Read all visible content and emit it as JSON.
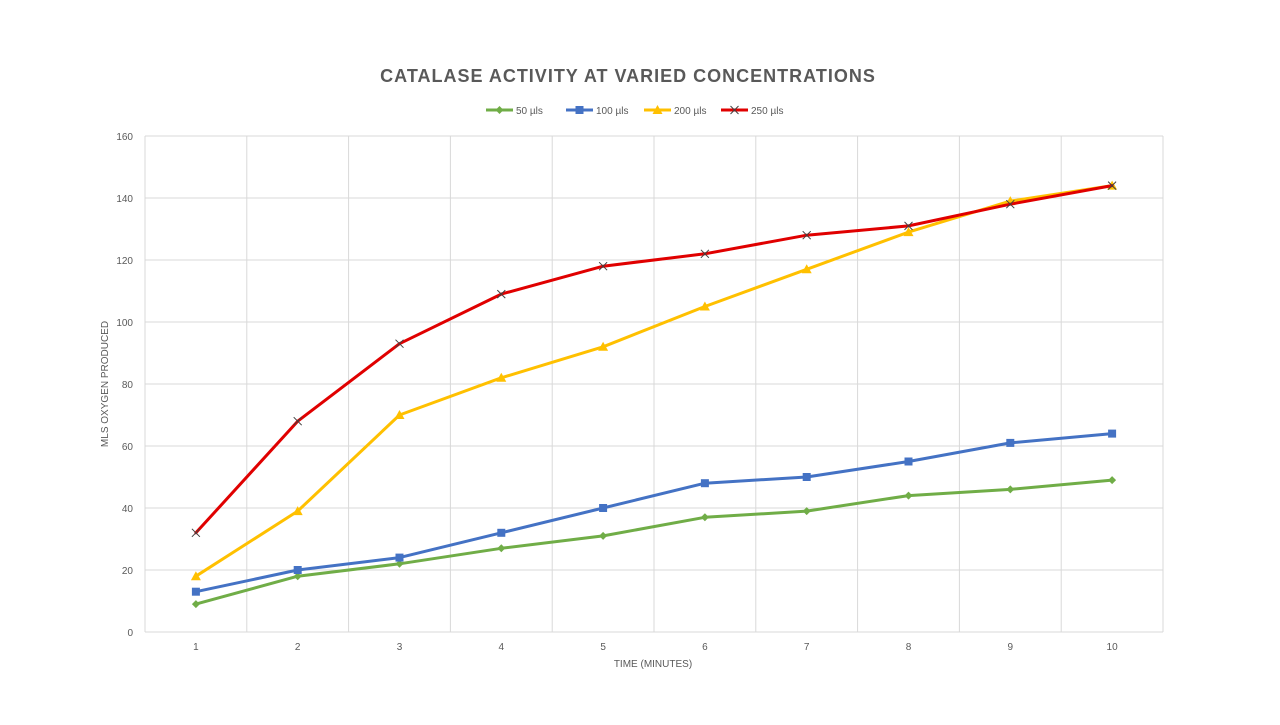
{
  "chart_data": {
    "type": "line",
    "title": "CATALASE ACTIVITY AT VARIED CONCENTRATIONS",
    "xlabel": "TIME (MINUTES)",
    "ylabel": "MLS  OXYGEN PRODUCED",
    "x": [
      1,
      2,
      3,
      4,
      5,
      6,
      7,
      8,
      9,
      10
    ],
    "x_tick_labels": [
      "1",
      "2",
      "3",
      "4",
      "5",
      "6",
      "7",
      "8",
      "9",
      "10"
    ],
    "ylim": [
      0,
      160
    ],
    "y_ticks": [
      0,
      20,
      40,
      60,
      80,
      100,
      120,
      140,
      160
    ],
    "grid": true,
    "legend_position": "top",
    "series": [
      {
        "name": "50 µls",
        "color": "#70AD47",
        "marker": "diamond",
        "values": [
          9,
          18,
          22,
          27,
          31,
          37,
          39,
          44,
          46,
          49
        ]
      },
      {
        "name": "100 µls",
        "color": "#4472C4",
        "marker": "square",
        "values": [
          13,
          20,
          24,
          32,
          40,
          48,
          50,
          55,
          61,
          64
        ]
      },
      {
        "name": "200 µls",
        "color": "#FFC000",
        "marker": "triangle",
        "values": [
          18,
          39,
          70,
          82,
          92,
          105,
          117,
          129,
          139,
          144
        ]
      },
      {
        "name": "250 µls",
        "color": "#E00000",
        "marker": "x",
        "values": [
          32,
          68,
          93,
          109,
          118,
          122,
          128,
          131,
          138,
          144
        ]
      }
    ]
  }
}
